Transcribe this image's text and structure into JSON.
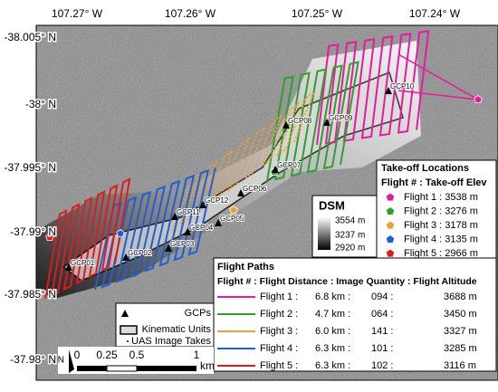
{
  "map": {
    "lon_labels": [
      "107.27° W",
      "107.26° W",
      "107.25° W",
      "107.24° W"
    ],
    "lat_labels": [
      "-38.005° N",
      "-38° N",
      "-37.995° N",
      "-37.99° N",
      "-37.985° N",
      "-37.98° N"
    ],
    "gcp_labels": [
      "GCP01",
      "GCP02",
      "GCP03",
      "GCP04",
      "GCP05",
      "GCP06",
      "GCP07",
      "GCP08",
      "GCP09",
      "GCP10",
      "GCP11",
      "GCP12"
    ],
    "takeoff_legend": {
      "title": "Take-off Locations",
      "header": "Flight # : Take-off Elev",
      "rows": [
        "Flight 1 : 3538 m",
        "Flight 2 : 3276 m",
        "Flight 3 : 3178 m",
        "Flight 4 : 3135 m",
        "Flight 5 : 2966 m"
      ]
    },
    "dsm_legend": {
      "title": "DSM",
      "labels": [
        "3554 m",
        "3237 m",
        "2920 m"
      ]
    },
    "flight_paths": {
      "title": "Flight Paths",
      "header": "Flight # : Flight Distance : Image Quantity : Flight Altitude",
      "colors": [
        "#e61aa0",
        "#2ca02c",
        "#f0a030",
        "#1f5fd6",
        "#e31a1c"
      ],
      "rows": [
        [
          "Flight 1 :",
          "6.8 km :",
          "094 :",
          "3688 m"
        ],
        [
          "Flight 2 :",
          "4.7 km :",
          "064 :",
          "3450 m"
        ],
        [
          "Flight 3 :",
          "6.0 km :",
          "141 :",
          "3327 m"
        ],
        [
          "Flight 4 :",
          "6.3 km :",
          "101 :",
          "3285 m"
        ],
        [
          "Flight 5 :",
          "6.3 km :",
          "102 :",
          "3116 m"
        ]
      ]
    },
    "legend": [
      "GCPs",
      "Kinematic Units",
      "UAS Image Takes"
    ],
    "scale": {
      "labels": [
        "0",
        "0.25",
        "0.5",
        "1"
      ],
      "unit": "km"
    },
    "north": "N"
  }
}
